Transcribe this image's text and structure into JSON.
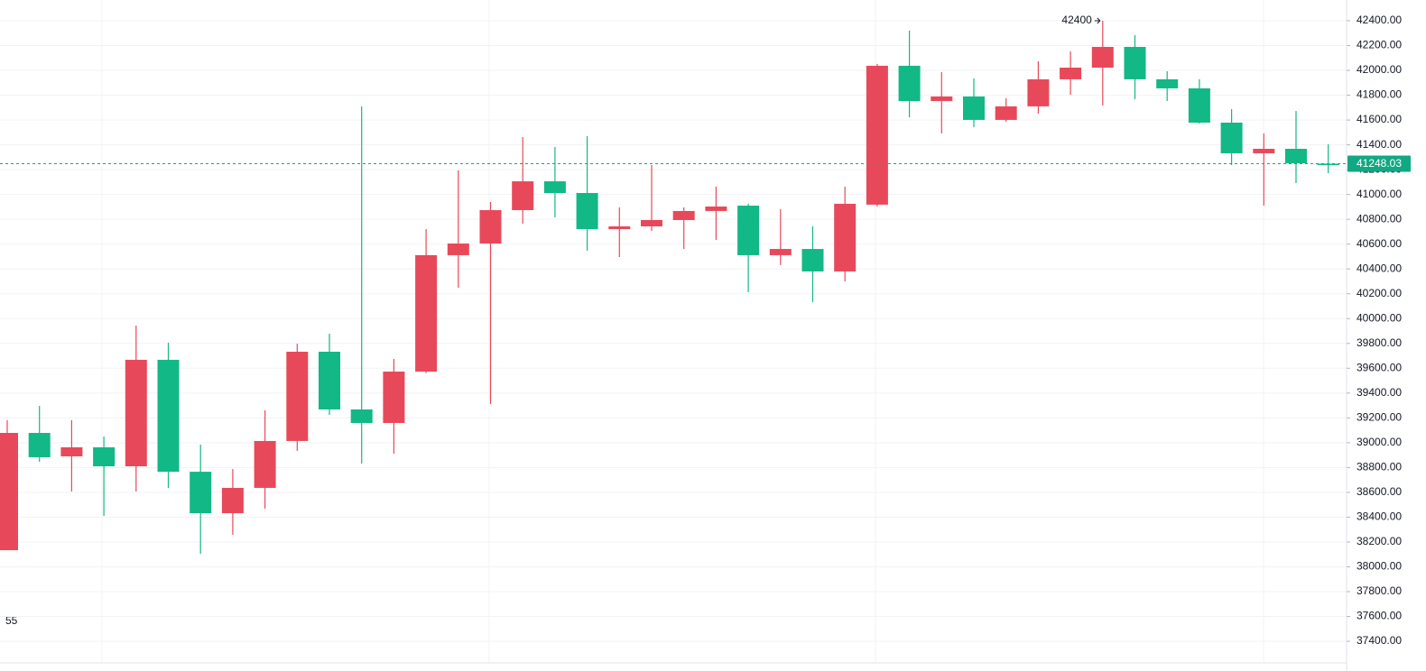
{
  "chart_data": {
    "type": "candlestick",
    "up_color": "#12b886",
    "down_color": "#e8495a",
    "open": [
      39079,
      38883,
      38963,
      38810,
      39668,
      38766,
      38432,
      38636,
      39014,
      39733,
      39268,
      39159,
      39573,
      40511,
      40605,
      40874,
      41106,
      41012,
      40721,
      40743,
      40794,
      40867,
      40903,
      40511,
      40561,
      40380,
      40925,
      42037,
      41753,
      41790,
      41601,
      41710,
      41928,
      42022,
      42189,
      41928,
      41855,
      41579,
      41332,
      41368,
      41252,
      41240
    ],
    "high": [
      39181,
      39297,
      39181,
      39050,
      39944,
      39806,
      38985,
      38788,
      39261,
      39798,
      39878,
      41710,
      39675,
      40721,
      41194,
      40939,
      41463,
      41383,
      41470,
      40896,
      41237,
      40896,
      41063,
      40925,
      40881,
      40743,
      41063,
      42052,
      42320,
      41986,
      41935,
      41775,
      42073,
      42153,
      42400,
      42284,
      41993,
      41928,
      41688,
      41492,
      41673,
      41404
    ],
    "low": [
      38134,
      38846,
      38607,
      38410,
      38607,
      38636,
      38105,
      38258,
      38469,
      38934,
      39224,
      38832,
      38912,
      39560,
      40249,
      39312,
      40765,
      40816,
      40547,
      40496,
      40707,
      40561,
      40634,
      40213,
      40431,
      40133,
      40300,
      40903,
      41622,
      41492,
      41543,
      41586,
      41651,
      41804,
      41717,
      41768,
      41753,
      41570,
      41237,
      40910,
      41092,
      41172
    ],
    "close": [
      38134,
      39079,
      38890,
      38963,
      38810,
      39668,
      38766,
      38432,
      38636,
      39014,
      39733,
      39268,
      39159,
      39573,
      40511,
      40605,
      40874,
      41106,
      41012,
      40721,
      40743,
      40794,
      40867,
      40910,
      40511,
      40561,
      40380,
      40918,
      42037,
      41753,
      41790,
      41601,
      41710,
      41928,
      42022,
      42189,
      41928,
      41855,
      41579,
      41332,
      41368,
      41248.03
    ],
    "ylim": [
      37226,
      42567
    ],
    "yticks": [
      {
        "value": 37400,
        "label": "37400.00"
      },
      {
        "value": 37600,
        "label": "37600.00"
      },
      {
        "value": 37800,
        "label": "37800.00"
      },
      {
        "value": 38000,
        "label": "38000.00"
      },
      {
        "value": 38200,
        "label": "38200.00"
      },
      {
        "value": 38400,
        "label": "38400.00"
      },
      {
        "value": 38600,
        "label": "38600.00"
      },
      {
        "value": 38800,
        "label": "38800.00"
      },
      {
        "value": 39000,
        "label": "39000.00"
      },
      {
        "value": 39200,
        "label": "39200.00"
      },
      {
        "value": 39400,
        "label": "39400.00"
      },
      {
        "value": 39600,
        "label": "39600.00"
      },
      {
        "value": 39800,
        "label": "39800.00"
      },
      {
        "value": 40000,
        "label": "40000.00"
      },
      {
        "value": 40200,
        "label": "40200.00"
      },
      {
        "value": 40400,
        "label": "40400.00"
      },
      {
        "value": 40600,
        "label": "40600.00"
      },
      {
        "value": 40800,
        "label": "40800.00"
      },
      {
        "value": 41000,
        "label": "41000.00"
      },
      {
        "value": 41200,
        "label": "41200.00"
      },
      {
        "value": 41400,
        "label": "41400.00"
      },
      {
        "value": 41600,
        "label": "41600.00"
      },
      {
        "value": 41800,
        "label": "41800.00"
      },
      {
        "value": 42000,
        "label": "42000.00"
      },
      {
        "value": 42200,
        "label": "42200.00"
      },
      {
        "value": 42400,
        "label": "42400.00"
      }
    ],
    "grid": true,
    "last_price": 41248.03,
    "last_price_color": "#11a884",
    "high_marker": 42400,
    "corner_label": "55"
  }
}
